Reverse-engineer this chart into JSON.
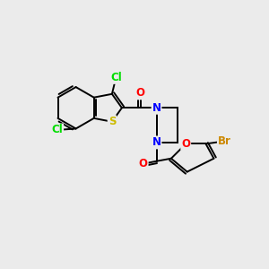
{
  "background_color": "#ebebeb",
  "bond_color": "#000000",
  "atom_colors": {
    "Cl": "#00dd00",
    "S": "#ccbb00",
    "N": "#0000ff",
    "O": "#ff0000",
    "Br": "#cc8800"
  },
  "font_size_atoms": 8.5,
  "lw": 1.4
}
